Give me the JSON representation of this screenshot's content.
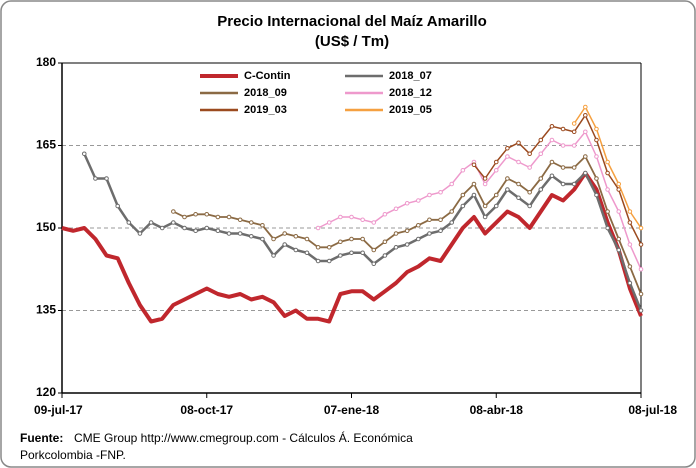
{
  "chart_data": {
    "type": "line",
    "title": "Precio Internacional del Maíz Amarillo",
    "subtitle": "(US$ / Tm)",
    "categories": [
      "09-jul-17",
      null,
      null,
      null,
      null,
      null,
      null,
      null,
      null,
      null,
      null,
      null,
      null,
      "08-oct-17",
      null,
      null,
      null,
      null,
      null,
      null,
      null,
      null,
      null,
      null,
      null,
      null,
      "07-ene-18",
      null,
      null,
      null,
      null,
      null,
      null,
      null,
      null,
      null,
      null,
      null,
      null,
      "08-abr-18",
      null,
      null,
      null,
      null,
      null,
      null,
      null,
      null,
      null,
      null,
      null,
      null,
      "08-jul-18"
    ],
    "ylim": [
      120,
      180
    ],
    "yticks": [
      120,
      135,
      150,
      165,
      180
    ],
    "grid": true,
    "legend": "top",
    "series": [
      {
        "name": "C-Contin",
        "color": "#c0272d",
        "values": [
          150,
          149.5,
          150,
          148,
          145,
          144.5,
          140,
          136,
          133,
          133.5,
          136,
          137,
          138,
          139,
          138,
          137.5,
          138,
          137,
          137.5,
          136.5,
          134,
          135,
          133.5,
          133.5,
          133,
          138,
          138.5,
          138.5,
          137,
          138.5,
          140,
          142,
          143,
          144.5,
          144,
          147,
          150,
          152,
          149,
          151,
          153,
          152,
          150,
          153,
          156,
          155,
          157,
          160,
          157,
          151,
          146,
          139,
          134
        ]
      },
      {
        "name": "2018_07",
        "color": "#6d6d6d",
        "values": [
          null,
          null,
          163.5,
          159,
          159,
          154,
          151,
          149,
          151,
          150,
          151,
          150,
          149.5,
          150,
          149.5,
          149,
          149,
          148.5,
          148,
          145,
          147,
          146,
          145.5,
          144,
          144,
          145,
          145.5,
          145.5,
          143.5,
          145,
          146.5,
          147,
          148,
          149,
          149.5,
          151,
          154,
          156,
          152,
          154,
          157,
          155.5,
          154,
          157,
          159.5,
          158,
          158,
          160,
          156,
          150,
          146,
          140,
          135
        ]
      },
      {
        "name": "2018_09",
        "color": "#8b6a44",
        "values": [
          null,
          null,
          null,
          null,
          null,
          null,
          null,
          null,
          null,
          null,
          153,
          152,
          152.5,
          152.5,
          152,
          152,
          151.5,
          151,
          150.5,
          148,
          149,
          148.5,
          148,
          146.5,
          146.5,
          147.5,
          148,
          148,
          146,
          147.5,
          149,
          149.5,
          150.5,
          151.5,
          151.5,
          153,
          156,
          158,
          154,
          156,
          159,
          158,
          156.5,
          159,
          162,
          161,
          161,
          163,
          159,
          153,
          148,
          143,
          138
        ]
      },
      {
        "name": "2018_12",
        "color": "#ee99cc",
        "values": [
          null,
          null,
          null,
          null,
          null,
          null,
          null,
          null,
          null,
          null,
          null,
          null,
          null,
          null,
          null,
          null,
          null,
          null,
          null,
          null,
          null,
          null,
          null,
          150,
          151,
          152,
          152,
          151.5,
          151,
          152.5,
          153.5,
          154.5,
          155,
          156,
          156.5,
          158,
          160.5,
          162,
          158,
          160.5,
          163,
          162,
          161,
          163.5,
          166,
          165,
          165,
          167.5,
          163,
          157,
          153,
          147,
          142.5
        ]
      },
      {
        "name": "2019_03",
        "color": "#9b4a1f",
        "values": [
          null,
          null,
          null,
          null,
          null,
          null,
          null,
          null,
          null,
          null,
          null,
          null,
          null,
          null,
          null,
          null,
          null,
          null,
          null,
          null,
          null,
          null,
          null,
          null,
          null,
          null,
          null,
          null,
          null,
          null,
          null,
          null,
          null,
          null,
          null,
          null,
          null,
          161.5,
          159,
          162,
          164.5,
          165.5,
          163.5,
          166,
          168.5,
          168,
          167.5,
          170.5,
          166,
          160,
          157,
          151,
          147
        ]
      },
      {
        "name": "2019_05",
        "color": "#f5a040",
        "values": [
          null,
          null,
          null,
          null,
          null,
          null,
          null,
          null,
          null,
          null,
          null,
          null,
          null,
          null,
          null,
          null,
          null,
          null,
          null,
          null,
          null,
          null,
          null,
          null,
          null,
          null,
          null,
          null,
          null,
          null,
          null,
          null,
          null,
          null,
          null,
          null,
          null,
          null,
          null,
          null,
          null,
          null,
          null,
          null,
          null,
          null,
          169,
          172,
          168,
          162,
          158,
          153,
          150
        ]
      }
    ]
  },
  "source": {
    "label": "Fuente:",
    "lines": [
      "CME Group http://www.cmegroup.com - Cálculos Á. Económica",
      "Porkcolombia  -FNP."
    ]
  }
}
